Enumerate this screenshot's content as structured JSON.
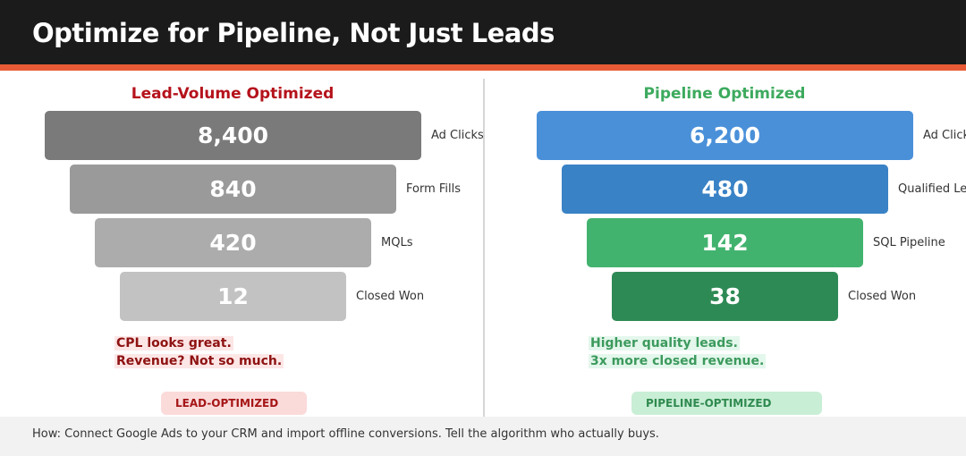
{
  "header": {
    "title": "Optimize for Pipeline, Not Just Leads"
  },
  "lead_panel": {
    "title": "Lead-Volume Optimized",
    "stages": [
      {
        "value": "8,400",
        "label": "Ad Clicks"
      },
      {
        "value": "840",
        "label": "Form Fills"
      },
      {
        "value": "420",
        "label": "MQLs"
      },
      {
        "value": "12",
        "label": "Closed Won"
      }
    ],
    "note_lines": [
      "CPL looks great.",
      "Revenue? Not so much."
    ],
    "badge": "LEAD-OPTIMIZED",
    "colors": [
      "#7a7a7a",
      "#9a9a9a",
      "#acacac",
      "#c2c2c2"
    ]
  },
  "pipeline_panel": {
    "title": "Pipeline Optimized",
    "stages": [
      {
        "value": "6,200",
        "label": "Ad Clicks"
      },
      {
        "value": "480",
        "label": "Qualified Leads"
      },
      {
        "value": "142",
        "label": "SQL Pipeline"
      },
      {
        "value": "38",
        "label": "Closed Won"
      }
    ],
    "note_lines": [
      "Higher quality leads.",
      "3x more closed revenue."
    ],
    "badge": "PIPELINE-OPTIMIZED",
    "colors": [
      "#4a90d9",
      "#3a82c6",
      "#42b36e",
      "#2e8a55"
    ]
  },
  "footer": {
    "text": "How: Connect Google Ads to your CRM and import offline conversions. Tell the algorithm who actually buys."
  },
  "accent_color": "#e85a35"
}
